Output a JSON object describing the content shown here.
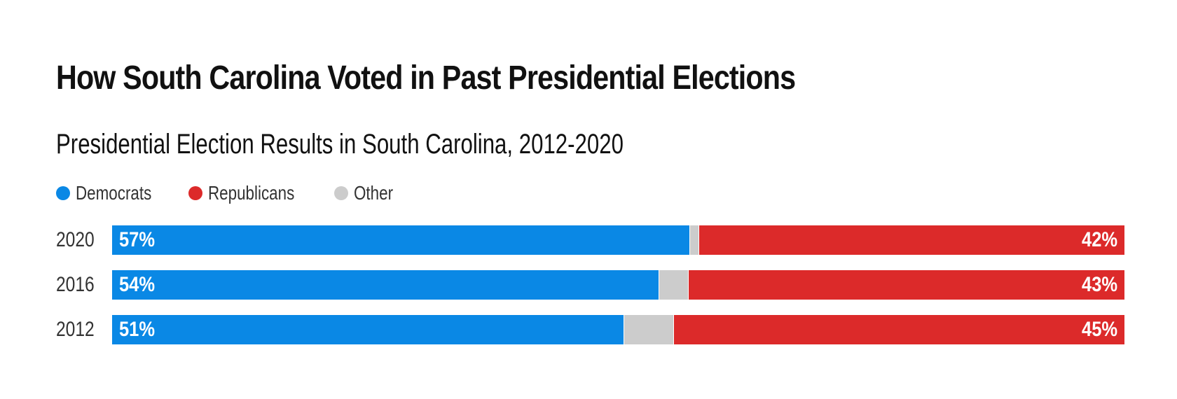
{
  "chart_data": {
    "type": "bar",
    "orientation": "horizontal",
    "stacked": true,
    "normalized": true,
    "title": "How South Carolina Voted in Past Presidential Elections",
    "subtitle": "Presidential Election Results in South Carolina, 2012-2020",
    "categories": [
      "2020",
      "2016",
      "2012"
    ],
    "series": [
      {
        "name": "Democrats",
        "color": "#0a88e5",
        "values": [
          57,
          54,
          51
        ],
        "labels": [
          "57%",
          "54%",
          "51%"
        ]
      },
      {
        "name": "Other",
        "color": "#cccccc",
        "values": [
          1,
          3,
          5
        ]
      },
      {
        "name": "Republicans",
        "color": "#dc2a2a",
        "values": [
          42,
          43,
          45
        ],
        "labels": [
          "42%",
          "43%",
          "45%"
        ]
      }
    ],
    "legend": {
      "placement": "top-left",
      "entries": [
        {
          "name": "Democrats",
          "color": "#0a88e5"
        },
        {
          "name": "Republicans",
          "color": "#dc2a2a"
        },
        {
          "name": "Other",
          "color": "#cccccc"
        }
      ]
    },
    "grid": false
  }
}
